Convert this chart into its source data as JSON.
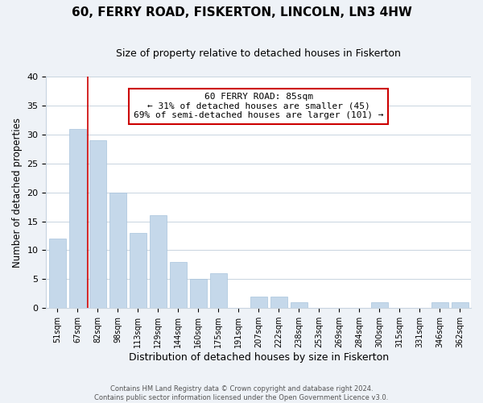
{
  "title": "60, FERRY ROAD, FISKERTON, LINCOLN, LN3 4HW",
  "subtitle": "Size of property relative to detached houses in Fiskerton",
  "xlabel": "Distribution of detached houses by size in Fiskerton",
  "ylabel": "Number of detached properties",
  "bar_labels": [
    "51sqm",
    "67sqm",
    "82sqm",
    "98sqm",
    "113sqm",
    "129sqm",
    "144sqm",
    "160sqm",
    "175sqm",
    "191sqm",
    "207sqm",
    "222sqm",
    "238sqm",
    "253sqm",
    "269sqm",
    "284sqm",
    "300sqm",
    "315sqm",
    "331sqm",
    "346sqm",
    "362sqm"
  ],
  "bar_values": [
    12,
    31,
    29,
    20,
    13,
    16,
    8,
    5,
    6,
    0,
    2,
    2,
    1,
    0,
    0,
    0,
    1,
    0,
    0,
    1,
    1
  ],
  "bar_color": "#c5d8ea",
  "bar_edge_color": "#a8c4dc",
  "marker_line_index": 2,
  "annotation_line1": "60 FERRY ROAD: 85sqm",
  "annotation_line2": "← 31% of detached houses are smaller (45)",
  "annotation_line3": "69% of semi-detached houses are larger (101) →",
  "annotation_box_color": "#ffffff",
  "annotation_box_edge": "#cc0000",
  "marker_line_color": "#cc0000",
  "ylim": [
    0,
    40
  ],
  "yticks": [
    0,
    5,
    10,
    15,
    20,
    25,
    30,
    35,
    40
  ],
  "footer_line1": "Contains HM Land Registry data © Crown copyright and database right 2024.",
  "footer_line2": "Contains public sector information licensed under the Open Government Licence v3.0.",
  "background_color": "#eef2f7",
  "plot_bg_color": "#ffffff",
  "grid_color": "#c8d4e0"
}
